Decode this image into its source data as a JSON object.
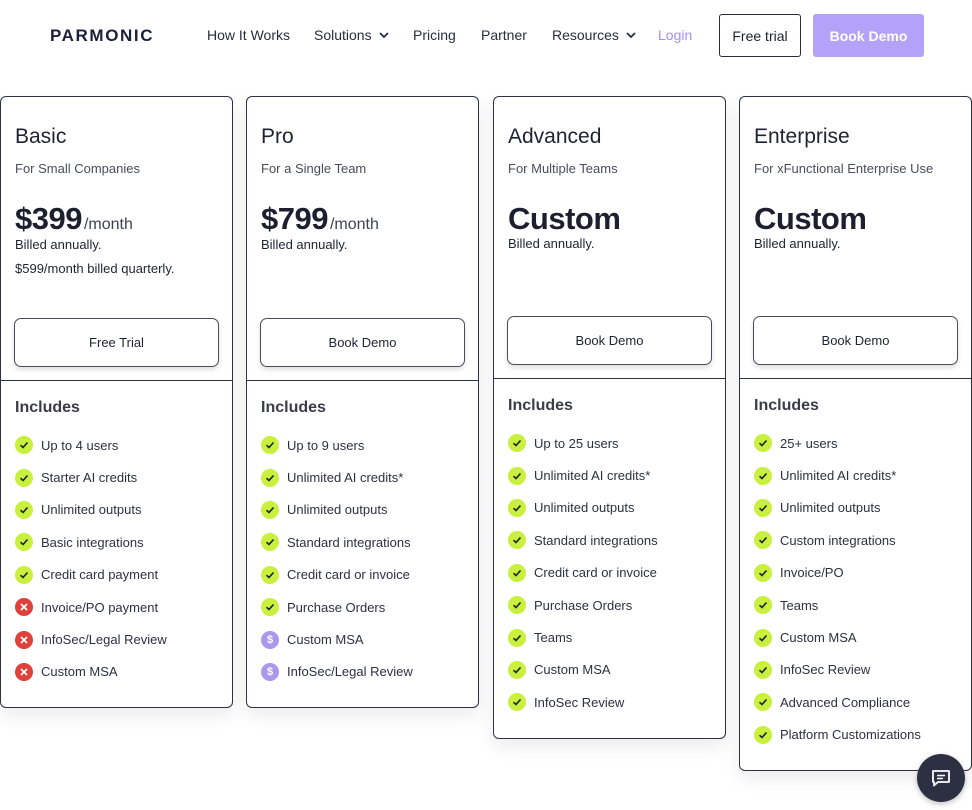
{
  "nav": {
    "logo": "PARMONIC",
    "items": [
      {
        "label": "How It Works",
        "dropdown": false
      },
      {
        "label": "Solutions",
        "dropdown": true
      },
      {
        "label": "Pricing",
        "dropdown": false
      },
      {
        "label": "Partner",
        "dropdown": false
      },
      {
        "label": "Resources",
        "dropdown": true
      }
    ],
    "login": "Login",
    "free_trial": "Free trial",
    "book_demo": "Book Demo"
  },
  "colors": {
    "accent_purple": "#b3a2f7",
    "login_text": "#a48ff0",
    "check_green": "#c8f03d",
    "x_red": "#e0403a",
    "dollar_purple": "#a998ee"
  },
  "includes_label": "Includes",
  "plans": [
    {
      "name": "Basic",
      "subtitle": "For Small Companies",
      "price": "$399",
      "per": "/month",
      "billed": "Billed annually.",
      "billed_extra": "$599/month billed quarterly.",
      "cta": "Free Trial",
      "features": [
        {
          "label": "Up to 4 users",
          "icon": "check-icon"
        },
        {
          "label": "Starter AI credits",
          "icon": "check-icon"
        },
        {
          "label": "Unlimited outputs",
          "icon": "check-icon"
        },
        {
          "label": "Basic integrations",
          "icon": "check-icon"
        },
        {
          "label": "Credit card payment",
          "icon": "check-icon"
        },
        {
          "label": "Invoice/PO payment",
          "icon": "x-icon"
        },
        {
          "label": "InfoSec/Legal Review",
          "icon": "x-icon"
        },
        {
          "label": "Custom MSA",
          "icon": "x-icon"
        }
      ]
    },
    {
      "name": "Pro",
      "subtitle": "For a Single Team",
      "price": "$799",
      "per": "/month",
      "billed": "Billed annually.",
      "billed_extra": "",
      "cta": "Book Demo",
      "features": [
        {
          "label": "Up to 9 users",
          "icon": "check-icon"
        },
        {
          "label": "Unlimited AI credits*",
          "icon": "check-icon"
        },
        {
          "label": "Unlimited outputs",
          "icon": "check-icon"
        },
        {
          "label": "Standard integrations",
          "icon": "check-icon"
        },
        {
          "label": "Credit card or invoice",
          "icon": "check-icon"
        },
        {
          "label": "Purchase Orders",
          "icon": "check-icon"
        },
        {
          "label": "Custom MSA",
          "icon": "dollar-icon"
        },
        {
          "label": "InfoSec/Legal Review",
          "icon": "dollar-icon"
        }
      ]
    },
    {
      "name": "Advanced",
      "subtitle": "For Multiple Teams",
      "price": "Custom",
      "per": "",
      "billed": "Billed annually.",
      "billed_extra": "",
      "cta": "Book Demo",
      "features": [
        {
          "label": "Up to 25 users",
          "icon": "check-icon"
        },
        {
          "label": "Unlimited AI credits*",
          "icon": "check-icon"
        },
        {
          "label": "Unlimited outputs",
          "icon": "check-icon"
        },
        {
          "label": "Standard integrations",
          "icon": "check-icon"
        },
        {
          "label": "Credit card or invoice",
          "icon": "check-icon"
        },
        {
          "label": "Purchase Orders",
          "icon": "check-icon"
        },
        {
          "label": "Teams",
          "icon": "check-icon"
        },
        {
          "label": "Custom MSA",
          "icon": "check-icon"
        },
        {
          "label": "InfoSec Review",
          "icon": "check-icon"
        }
      ]
    },
    {
      "name": "Enterprise",
      "subtitle": "For xFunctional Enterprise Use",
      "price": "Custom",
      "per": "",
      "billed": "Billed annually.",
      "billed_extra": "",
      "cta": "Book Demo",
      "features": [
        {
          "label": "25+ users",
          "icon": "check-icon"
        },
        {
          "label": "Unlimited AI credits*",
          "icon": "check-icon"
        },
        {
          "label": "Unlimited outputs",
          "icon": "check-icon"
        },
        {
          "label": "Custom integrations",
          "icon": "check-icon"
        },
        {
          "label": "Invoice/PO",
          "icon": "check-icon"
        },
        {
          "label": "Teams",
          "icon": "check-icon"
        },
        {
          "label": "Custom MSA",
          "icon": "check-icon"
        },
        {
          "label": "InfoSec Review",
          "icon": "check-icon"
        },
        {
          "label": "Advanced Compliance",
          "icon": "check-icon"
        },
        {
          "label": "Platform Customizations",
          "icon": "check-icon"
        }
      ]
    }
  ]
}
